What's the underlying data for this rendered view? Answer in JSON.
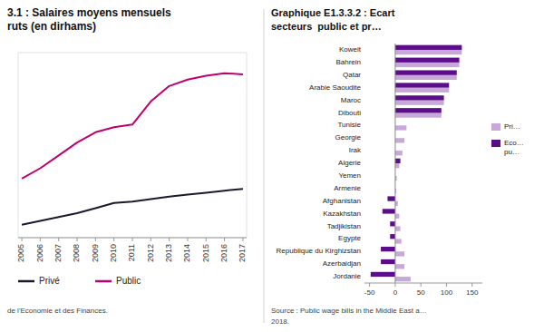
{
  "chart_data": [
    {
      "type": "line",
      "title": "3.1 : Salaires moyens mensuels",
      "subtitle": "ruts (en dirhams)",
      "annotations": [
        "de l'Economie et des Finances."
      ],
      "x": [
        2005,
        2006,
        2007,
        2008,
        2009,
        2010,
        2011,
        2012,
        2013,
        2014,
        2015,
        2016,
        2017
      ],
      "series": [
        {
          "name": "Privé",
          "color": "#1a1a2e",
          "values": [
            4300,
            4450,
            4600,
            4750,
            4950,
            5150,
            5200,
            5300,
            5400,
            5480,
            5550,
            5630,
            5700
          ]
        },
        {
          "name": "Public",
          "color": "#c0006e",
          "values": [
            6100,
            6500,
            7000,
            7500,
            7900,
            8100,
            8200,
            9100,
            9700,
            9950,
            10100,
            10200,
            10150
          ]
        }
      ],
      "xlim": [
        2004.8,
        2017.2
      ],
      "xticks": [
        2005,
        2006,
        2007,
        2008,
        2009,
        2010,
        2011,
        2012,
        2013,
        2014,
        2015,
        2016,
        2017
      ],
      "ylim": [
        3800,
        11000
      ],
      "tick_labels": "x",
      "grid": false,
      "legend": "bottom"
    },
    {
      "type": "bar",
      "orientation": "horizontal",
      "title": "Graphique E1.3.3.2 : Ecart",
      "subtitle": "secteurs  public et pr…",
      "annotations": [
        "Source : Public wage bills in the Middle East a…",
        "2018."
      ],
      "categories": [
        "Koweit",
        "Bahrein",
        "Qatar",
        "Arabie Saoudite",
        "Maroc",
        "Dibouti",
        "Tunisie",
        "Georgie",
        "Irak",
        "Algerie",
        "Yemen",
        "Armenie",
        "Afghanistan",
        "Kazakhstan",
        "Tadjikistan",
        "Egypte",
        "Republique du Kirghizstan",
        "Azerbaidjan",
        "Jordanie"
      ],
      "series": [
        {
          "name": "Pri…",
          "color": "#c8a8d8",
          "values": [
            130,
            125,
            120,
            105,
            95,
            90,
            22,
            18,
            14,
            8,
            3,
            2,
            5,
            8,
            10,
            12,
            18,
            18,
            30
          ]
        },
        {
          "name": "Eco…\npu…",
          "color": "#5b0d8a",
          "values": [
            130,
            125,
            120,
            105,
            95,
            90,
            0,
            0,
            0,
            10,
            0,
            0,
            -15,
            -25,
            -10,
            -10,
            -28,
            -28,
            -48
          ]
        }
      ],
      "xlim": [
        -60,
        170
      ],
      "xticks": [
        -50,
        0,
        50,
        100,
        150
      ],
      "grid": false,
      "legend": "right"
    }
  ]
}
